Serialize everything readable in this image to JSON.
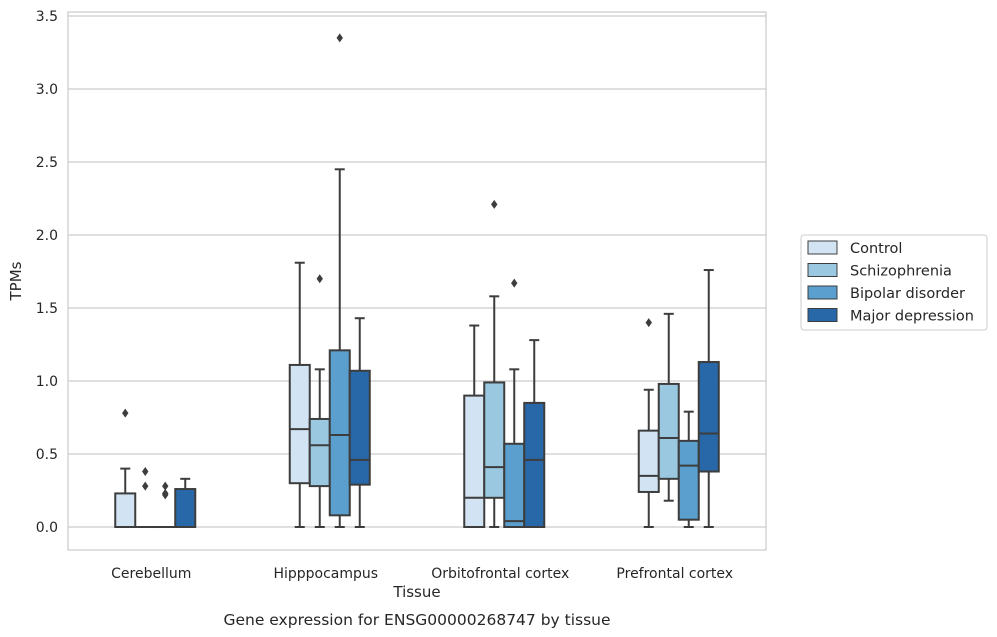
{
  "chart_data": {
    "type": "box",
    "title": "Gene expression for ENSG00000268747 by tissue",
    "xlabel": "Tissue",
    "ylabel": "TPMs",
    "ylim": [
      -0.16,
      3.52
    ],
    "yticks": [
      "0.0",
      "0.5",
      "1.0",
      "1.5",
      "2.0",
      "2.5",
      "3.0",
      "3.5"
    ],
    "grid": "horizontal",
    "legend_placement": "right",
    "categories": [
      "Cerebellum",
      "Hipppocampus",
      "Orbitofrontal cortex",
      "Prefrontal cortex"
    ],
    "series": [
      {
        "name": "Control",
        "color": "#d2e3f3",
        "boxes": [
          {
            "whislo": 0.0,
            "q1": 0.0,
            "med": 0.0,
            "q3": 0.23,
            "whishi": 0.4,
            "fliers": [
              0.78
            ]
          },
          {
            "whislo": 0.0,
            "q1": 0.3,
            "med": 0.67,
            "q3": 1.11,
            "whishi": 1.81,
            "fliers": []
          },
          {
            "whislo": 0.0,
            "q1": 0.0,
            "med": 0.2,
            "q3": 0.9,
            "whishi": 1.38,
            "fliers": []
          },
          {
            "whislo": 0.0,
            "q1": 0.24,
            "med": 0.35,
            "q3": 0.66,
            "whishi": 0.94,
            "fliers": [
              1.4
            ]
          }
        ]
      },
      {
        "name": "Schizophrenia",
        "color": "#9ac8e0",
        "boxes": [
          {
            "whislo": 0.0,
            "q1": 0.0,
            "med": 0.0,
            "q3": 0.0,
            "whishi": 0.0,
            "fliers": [
              0.38,
              0.28
            ]
          },
          {
            "whislo": 0.0,
            "q1": 0.28,
            "med": 0.56,
            "q3": 0.74,
            "whishi": 1.08,
            "fliers": [
              1.7
            ]
          },
          {
            "whislo": 0.0,
            "q1": 0.2,
            "med": 0.41,
            "q3": 0.99,
            "whishi": 1.58,
            "fliers": [
              2.21
            ]
          },
          {
            "whislo": 0.18,
            "q1": 0.33,
            "med": 0.61,
            "q3": 0.98,
            "whishi": 1.46,
            "fliers": []
          }
        ]
      },
      {
        "name": "Bipolar disorder",
        "color": "#5a9fcd",
        "boxes": [
          {
            "whislo": 0.0,
            "q1": 0.0,
            "med": 0.0,
            "q3": 0.0,
            "whishi": 0.0,
            "fliers": [
              0.28,
              0.23,
              0.22
            ]
          },
          {
            "whislo": 0.0,
            "q1": 0.08,
            "med": 0.63,
            "q3": 1.21,
            "whishi": 2.45,
            "fliers": [
              3.35
            ]
          },
          {
            "whislo": 0.0,
            "q1": 0.0,
            "med": 0.04,
            "q3": 0.57,
            "whishi": 1.08,
            "fliers": [
              1.67
            ]
          },
          {
            "whislo": 0.0,
            "q1": 0.05,
            "med": 0.42,
            "q3": 0.59,
            "whishi": 0.79,
            "fliers": []
          }
        ]
      },
      {
        "name": "Major depression",
        "color": "#2868a8",
        "boxes": [
          {
            "whislo": 0.0,
            "q1": 0.0,
            "med": 0.0,
            "q3": 0.26,
            "whishi": 0.33,
            "fliers": []
          },
          {
            "whislo": 0.0,
            "q1": 0.29,
            "med": 0.46,
            "q3": 1.07,
            "whishi": 1.43,
            "fliers": []
          },
          {
            "whislo": 0.0,
            "q1": 0.0,
            "med": 0.46,
            "q3": 0.85,
            "whishi": 1.28,
            "fliers": []
          },
          {
            "whislo": 0.0,
            "q1": 0.38,
            "med": 0.64,
            "q3": 1.13,
            "whishi": 1.76,
            "fliers": []
          }
        ]
      }
    ]
  }
}
